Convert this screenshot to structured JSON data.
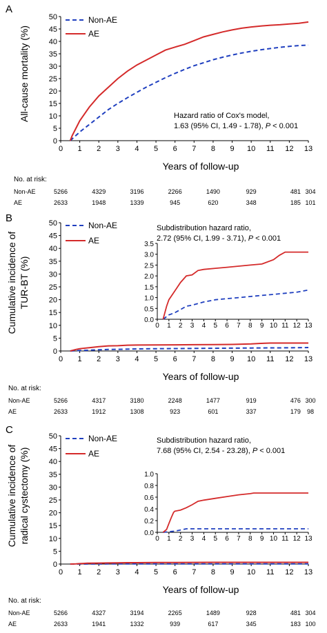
{
  "chart_data": [
    {
      "type": "line",
      "panel_label": "A",
      "xlabel": "Years of follow-up",
      "ylabel": "All-cause mortality (%)",
      "xlim": [
        0,
        13
      ],
      "ylim": [
        0,
        50
      ],
      "xticks": [
        0,
        1,
        2,
        3,
        4,
        5,
        6,
        7,
        8,
        9,
        10,
        11,
        12,
        13
      ],
      "yticks": [
        0,
        5,
        10,
        15,
        20,
        25,
        30,
        35,
        40,
        45,
        50
      ],
      "legend": "top-left",
      "series": [
        {
          "name": "Non-AE",
          "color": "#1f3fbf",
          "dash": true,
          "x": [
            0.5,
            1,
            1.5,
            2,
            2.5,
            3,
            3.5,
            4,
            4.5,
            5,
            5.5,
            6,
            6.5,
            7,
            7.5,
            8,
            8.5,
            9,
            9.5,
            10,
            10.5,
            11,
            11.5,
            12,
            12.5,
            13
          ],
          "y": [
            0,
            3.5,
            6.5,
            9.5,
            12.5,
            15,
            17.3,
            19.5,
            21.6,
            23.5,
            25.4,
            27.1,
            28.7,
            30.2,
            31.4,
            32.6,
            33.6,
            34.5,
            35.3,
            36,
            36.6,
            37.1,
            37.6,
            38,
            38.3,
            38.5
          ]
        },
        {
          "name": "AE",
          "color": "#d42a2a",
          "dash": false,
          "x": [
            0.5,
            0.6,
            0.8,
            1,
            1.5,
            2,
            2.5,
            3,
            3.5,
            4,
            4.5,
            5,
            5.5,
            6,
            6.5,
            7,
            7.5,
            8,
            8.5,
            9,
            9.5,
            10,
            10.5,
            11,
            11.5,
            12,
            12.5,
            13
          ],
          "y": [
            0,
            2,
            5,
            8,
            13.5,
            18,
            21.5,
            25,
            28,
            30.5,
            32.5,
            34.5,
            36.5,
            37.7,
            38.8,
            40.3,
            41.8,
            42.8,
            43.8,
            44.6,
            45.3,
            45.8,
            46.2,
            46.5,
            46.7,
            47,
            47.3,
            47.8
          ]
        }
      ],
      "annotation": {
        "line1": "Hazard ratio of Cox's model,",
        "line2": "1.63 (95% CI, 1.49 - 1.78), ",
        "p_label": "P",
        "p_text": " < 0.001"
      },
      "risk_table": {
        "title": "No. at risk:",
        "x": [
          0,
          2,
          4,
          6,
          8,
          10,
          12.4,
          13
        ],
        "rows": [
          {
            "label": "Non-AE",
            "values": [
              "5266",
              "4329",
              "3196",
              "2266",
              "1490",
              "929",
              "481",
              "304"
            ]
          },
          {
            "label": "AE",
            "values": [
              "2633",
              "1948",
              "1339",
              "945",
              "620",
              "348",
              "185",
              "101"
            ]
          }
        ]
      }
    },
    {
      "type": "line",
      "panel_label": "B",
      "xlabel": "Years of follow-up",
      "ylabel_line1": "Cumulative incidence of",
      "ylabel_line2": "TUR-BT (%)",
      "xlim": [
        0,
        13
      ],
      "ylim": [
        0,
        50
      ],
      "xticks": [
        0,
        1,
        2,
        3,
        4,
        5,
        6,
        7,
        8,
        9,
        10,
        11,
        12,
        13
      ],
      "yticks": [
        0,
        5,
        10,
        15,
        20,
        25,
        30,
        35,
        40,
        45,
        50
      ],
      "legend": "top-left",
      "series": [
        {
          "name": "Non-AE",
          "color": "#1f3fbf",
          "dash": true,
          "x": [
            0.5,
            1,
            1.5,
            2,
            2.5,
            3,
            4,
            5,
            6,
            7,
            8,
            9,
            10,
            11,
            12,
            13
          ],
          "y": [
            0,
            0.2,
            0.3,
            0.45,
            0.6,
            0.65,
            0.8,
            0.9,
            0.95,
            1.0,
            1.05,
            1.1,
            1.15,
            1.2,
            1.25,
            1.35
          ]
        },
        {
          "name": "AE",
          "color": "#d42a2a",
          "dash": false,
          "x": [
            0.5,
            0.8,
            1,
            1.5,
            2,
            2.5,
            3,
            3.5,
            4,
            5,
            6,
            7,
            8,
            9,
            10,
            10.5,
            11,
            11.5,
            12,
            13
          ],
          "y": [
            0,
            0.6,
            0.9,
            1.3,
            1.7,
            2.0,
            2.05,
            2.25,
            2.3,
            2.35,
            2.4,
            2.45,
            2.5,
            2.55,
            2.75,
            2.95,
            3.1,
            3.1,
            3.1,
            3.1
          ]
        }
      ],
      "inset": {
        "xlim": [
          0,
          13
        ],
        "ylim": [
          0,
          3.5
        ],
        "xticks": [
          0,
          1,
          2,
          3,
          4,
          5,
          6,
          7,
          8,
          9,
          10,
          11,
          12,
          13
        ],
        "yticks": [
          "0.0",
          "0.5",
          "1.0",
          "1.5",
          "2.0",
          "2.5",
          "3.0",
          "3.5"
        ],
        "ytick_values": [
          0,
          0.5,
          1,
          1.5,
          2,
          2.5,
          3,
          3.5
        ]
      },
      "annotation": {
        "line1": "Subdistribution hazard ratio,",
        "line2": "2.72 (95% CI, 1.99 - 3.71), ",
        "p_label": "P",
        "p_text": " < 0.001"
      },
      "risk_table": {
        "title": "No. at risk:",
        "x": [
          0,
          2,
          4,
          6,
          8,
          10,
          12.4,
          13
        ],
        "rows": [
          {
            "label": "Non-AE",
            "values": [
              "5266",
              "4317",
              "3180",
              "2248",
              "1477",
              "919",
              "476",
              "300"
            ]
          },
          {
            "label": "AE",
            "values": [
              "2633",
              "1912",
              "1308",
              "923",
              "601",
              "337",
              "179",
              "98"
            ]
          }
        ]
      }
    },
    {
      "type": "line",
      "panel_label": "C",
      "xlabel": "Years of follow-up",
      "ylabel_line1": "Cumulative incidence of",
      "ylabel_line2": "radical cystectomy (%)",
      "xlim": [
        0,
        13
      ],
      "ylim": [
        0,
        50
      ],
      "xticks": [
        0,
        1,
        2,
        3,
        4,
        5,
        6,
        7,
        8,
        9,
        10,
        11,
        12,
        13
      ],
      "yticks": [
        0,
        5,
        10,
        15,
        20,
        25,
        30,
        35,
        40,
        45,
        50
      ],
      "legend": "top-left",
      "series": [
        {
          "name": "Non-AE",
          "color": "#1f3fbf",
          "dash": true,
          "x": [
            0.5,
            1,
            1.5,
            2,
            2.5,
            3,
            4,
            5,
            6,
            7,
            8,
            9,
            10,
            11,
            12,
            13
          ],
          "y": [
            0,
            0.01,
            0.02,
            0.04,
            0.06,
            0.06,
            0.06,
            0.06,
            0.06,
            0.06,
            0.06,
            0.06,
            0.06,
            0.06,
            0.06,
            0.06
          ]
        },
        {
          "name": "AE",
          "color": "#d42a2a",
          "dash": false,
          "x": [
            0.5,
            0.8,
            1,
            1.2,
            1.4,
            1.5,
            2,
            2.5,
            3,
            3.5,
            4,
            5,
            6,
            7,
            8,
            8.3,
            9,
            10,
            11,
            12,
            13
          ],
          "y": [
            0,
            0.05,
            0.15,
            0.25,
            0.34,
            0.36,
            0.38,
            0.42,
            0.47,
            0.53,
            0.55,
            0.58,
            0.61,
            0.64,
            0.66,
            0.67,
            0.67,
            0.67,
            0.67,
            0.67,
            0.67
          ]
        }
      ],
      "inset": {
        "xlim": [
          0,
          13
        ],
        "ylim": [
          0,
          1.0
        ],
        "xticks": [
          0,
          1,
          2,
          3,
          4,
          5,
          6,
          7,
          8,
          9,
          10,
          11,
          12,
          13
        ],
        "yticks": [
          "0.0",
          "0.2",
          "0.4",
          "0.6",
          "0.8",
          "1.0"
        ],
        "ytick_values": [
          0,
          0.2,
          0.4,
          0.6,
          0.8,
          1.0
        ]
      },
      "annotation": {
        "line1": "Subdistribution hazard ratio,",
        "line2": "7.68 (95% CI, 2.54 - 23.28), ",
        "p_label": "P",
        "p_text": " < 0.001"
      },
      "risk_table": {
        "title": "No. at risk:",
        "x": [
          0,
          2,
          4,
          6,
          8,
          10,
          12.4,
          13
        ],
        "rows": [
          {
            "label": "Non-AE",
            "values": [
              "5266",
              "4327",
              "3194",
              "2265",
              "1489",
              "928",
              "481",
              "304"
            ]
          },
          {
            "label": "AE",
            "values": [
              "2633",
              "1941",
              "1332",
              "939",
              "617",
              "345",
              "183",
              "100"
            ]
          }
        ]
      }
    }
  ]
}
